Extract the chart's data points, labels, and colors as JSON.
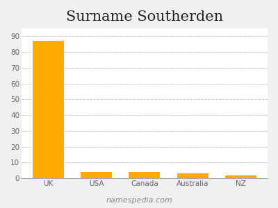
{
  "title": "Surname Southerden",
  "categories": [
    "UK",
    "USA",
    "Canada",
    "Australia",
    "NZ"
  ],
  "values": [
    87,
    4,
    4,
    3,
    2
  ],
  "bar_color": "#FFAA00",
  "background_color": "#f0f0f0",
  "plot_bg_color": "#ffffff",
  "ylim": [
    0,
    95
  ],
  "yticks": [
    0,
    10,
    20,
    30,
    40,
    50,
    60,
    70,
    80,
    90
  ],
  "title_fontsize": 15,
  "tick_fontsize": 7.5,
  "watermark": "namespedia.com",
  "watermark_fontsize": 8,
  "grid_color": "#cccccc",
  "grid_linestyle": "--"
}
